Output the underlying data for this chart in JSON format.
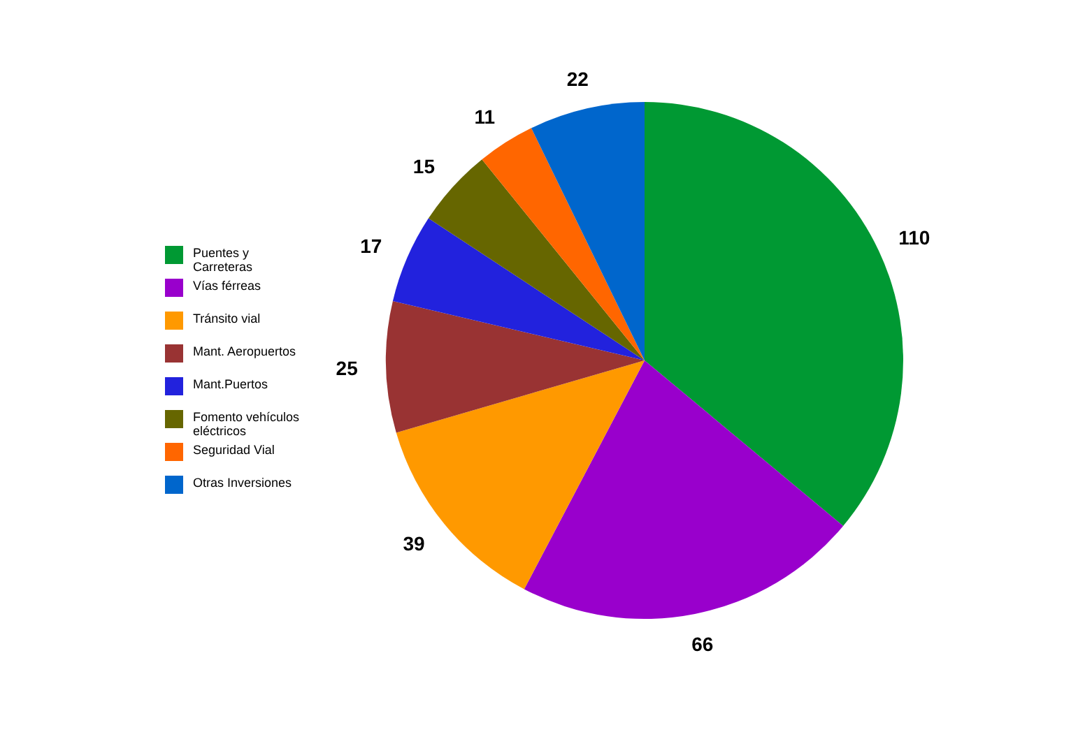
{
  "chart_data": {
    "type": "pie",
    "categories": [
      "Puentes y Carreteras",
      "Vías férreas",
      "Tránsito vial",
      "Mant. Aeropuertos",
      "Mant.Puertos",
      "Fomento vehículos eléctricos",
      "Seguridad Vial",
      "Otras Inversiones"
    ],
    "values": [
      110,
      66,
      39,
      25,
      17,
      15,
      11,
      22
    ],
    "colors": [
      "#009933",
      "#9900cc",
      "#ff9900",
      "#993333",
      "#2222dd",
      "#666600",
      "#ff6600",
      "#0066cc"
    ],
    "data_labels": true,
    "legend": "left"
  }
}
